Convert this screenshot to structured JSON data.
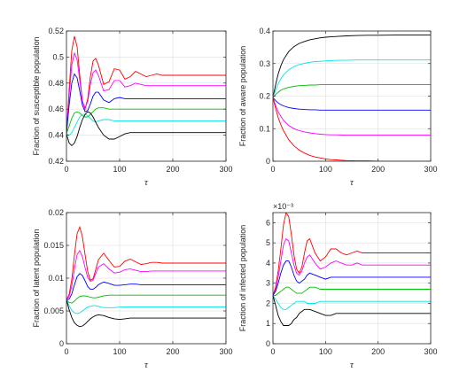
{
  "chart_data": [
    {
      "type": "line",
      "ylabel": "Fraction of susceptible population",
      "xlabel": "τ",
      "xlim": [
        0,
        300
      ],
      "ylim": [
        0.42,
        0.52
      ],
      "xticks": [
        "0",
        "100",
        "200",
        "300"
      ],
      "yticks": [
        "0.42",
        "0.44",
        "0.46",
        "0.48",
        "0.5",
        "0.52"
      ],
      "grid": true,
      "x": [
        0,
        5,
        10,
        15,
        20,
        25,
        30,
        35,
        40,
        45,
        50,
        55,
        60,
        70,
        80,
        90,
        100,
        110,
        120,
        130,
        140,
        150,
        160,
        170,
        180,
        190,
        200,
        220,
        240,
        260,
        280,
        300
      ],
      "series": [
        {
          "color": "#ff0000",
          "values": [
            0.441,
            0.475,
            0.505,
            0.516,
            0.508,
            0.486,
            0.466,
            0.46,
            0.468,
            0.485,
            0.497,
            0.499,
            0.494,
            0.479,
            0.481,
            0.491,
            0.49,
            0.483,
            0.485,
            0.489,
            0.487,
            0.485,
            0.486,
            0.487,
            0.486,
            0.486,
            0.486,
            0.486,
            0.486,
            0.486,
            0.486,
            0.486
          ]
        },
        {
          "color": "#ff00ff",
          "values": [
            0.441,
            0.47,
            0.494,
            0.503,
            0.498,
            0.482,
            0.466,
            0.461,
            0.466,
            0.479,
            0.488,
            0.49,
            0.486,
            0.474,
            0.475,
            0.482,
            0.482,
            0.477,
            0.478,
            0.48,
            0.479,
            0.478,
            0.478,
            0.478,
            0.478,
            0.478,
            0.478,
            0.478,
            0.478,
            0.478,
            0.478,
            0.478
          ]
        },
        {
          "color": "#0000ff",
          "values": [
            0.441,
            0.463,
            0.48,
            0.487,
            0.484,
            0.474,
            0.463,
            0.458,
            0.459,
            0.464,
            0.47,
            0.473,
            0.473,
            0.467,
            0.465,
            0.468,
            0.469,
            0.468,
            0.468,
            0.468,
            0.468,
            0.468,
            0.468,
            0.468,
            0.468,
            0.468,
            0.468,
            0.468,
            0.468,
            0.468,
            0.468,
            0.468
          ]
        },
        {
          "color": "#00c000",
          "values": [
            0.441,
            0.447,
            0.453,
            0.457,
            0.458,
            0.457,
            0.455,
            0.454,
            0.454,
            0.456,
            0.458,
            0.46,
            0.461,
            0.461,
            0.46,
            0.46,
            0.46,
            0.46,
            0.46,
            0.46,
            0.46,
            0.46,
            0.46,
            0.46,
            0.46,
            0.46,
            0.46,
            0.46,
            0.46,
            0.46,
            0.46,
            0.46
          ]
        },
        {
          "color": "#00e5e5",
          "values": [
            0.441,
            0.44,
            0.442,
            0.446,
            0.45,
            0.454,
            0.456,
            0.456,
            0.455,
            0.453,
            0.451,
            0.45,
            0.451,
            0.452,
            0.452,
            0.451,
            0.451,
            0.451,
            0.451,
            0.451,
            0.451,
            0.451,
            0.451,
            0.451,
            0.451,
            0.451,
            0.451,
            0.451,
            0.451,
            0.451,
            0.451,
            0.451
          ]
        },
        {
          "color": "#000000",
          "values": [
            0.441,
            0.434,
            0.432,
            0.434,
            0.439,
            0.446,
            0.452,
            0.456,
            0.458,
            0.457,
            0.454,
            0.45,
            0.446,
            0.44,
            0.437,
            0.437,
            0.439,
            0.441,
            0.442,
            0.442,
            0.442,
            0.442,
            0.442,
            0.442,
            0.442,
            0.442,
            0.442,
            0.442,
            0.442,
            0.442,
            0.442,
            0.442
          ]
        }
      ]
    },
    {
      "type": "line",
      "ylabel": "Fraction of aware population",
      "xlabel": "τ",
      "xlim": [
        0,
        300
      ],
      "ylim": [
        0,
        0.4
      ],
      "xticks": [
        "0",
        "100",
        "200",
        "300"
      ],
      "yticks": [
        "0",
        "0.1",
        "0.2",
        "0.3",
        "0.4"
      ],
      "grid": true,
      "x": [
        0,
        5,
        10,
        15,
        20,
        30,
        40,
        50,
        60,
        70,
        80,
        90,
        100,
        110,
        120,
        140,
        160,
        180,
        200,
        250,
        300
      ],
      "series": [
        {
          "color": "#000000",
          "values": [
            0.195,
            0.235,
            0.268,
            0.293,
            0.312,
            0.337,
            0.352,
            0.362,
            0.368,
            0.373,
            0.376,
            0.379,
            0.381,
            0.382,
            0.383,
            0.385,
            0.386,
            0.387,
            0.387,
            0.388,
            0.388
          ]
        },
        {
          "color": "#00e5e5",
          "values": [
            0.195,
            0.219,
            0.238,
            0.253,
            0.265,
            0.281,
            0.291,
            0.297,
            0.301,
            0.304,
            0.306,
            0.307,
            0.308,
            0.309,
            0.31,
            0.31,
            0.311,
            0.311,
            0.311,
            0.311,
            0.311
          ]
        },
        {
          "color": "#00c000",
          "values": [
            0.195,
            0.205,
            0.212,
            0.218,
            0.222,
            0.227,
            0.23,
            0.232,
            0.233,
            0.234,
            0.234,
            0.235,
            0.235,
            0.235,
            0.235,
            0.235,
            0.235,
            0.235,
            0.235,
            0.235,
            0.235
          ]
        },
        {
          "color": "#0000ff",
          "values": [
            0.195,
            0.186,
            0.179,
            0.174,
            0.17,
            0.165,
            0.162,
            0.16,
            0.159,
            0.158,
            0.158,
            0.157,
            0.157,
            0.157,
            0.157,
            0.157,
            0.157,
            0.157,
            0.157,
            0.157,
            0.157
          ]
        },
        {
          "color": "#ff00ff",
          "values": [
            0.195,
            0.171,
            0.152,
            0.138,
            0.126,
            0.11,
            0.1,
            0.094,
            0.09,
            0.087,
            0.085,
            0.083,
            0.082,
            0.081,
            0.081,
            0.08,
            0.08,
            0.08,
            0.08,
            0.08,
            0.08
          ]
        },
        {
          "color": "#ff0000",
          "values": [
            0.195,
            0.162,
            0.134,
            0.112,
            0.094,
            0.066,
            0.047,
            0.034,
            0.025,
            0.018,
            0.013,
            0.01,
            0.007,
            0.005,
            0.004,
            0.002,
            0.001,
            0.001,
            0.0,
            0.0,
            0.0
          ]
        }
      ]
    },
    {
      "type": "line",
      "ylabel": "Fraction of latent population",
      "xlabel": "τ",
      "xlim": [
        0,
        300
      ],
      "ylim": [
        0,
        0.02
      ],
      "xticks": [
        "0",
        "100",
        "200",
        "300"
      ],
      "yticks": [
        "0",
        "0.005",
        "0.01",
        "0.015",
        "0.02"
      ],
      "grid": true,
      "x": [
        0,
        5,
        10,
        15,
        20,
        25,
        30,
        35,
        40,
        45,
        50,
        55,
        60,
        70,
        80,
        90,
        100,
        110,
        120,
        130,
        140,
        150,
        160,
        170,
        180,
        190,
        200,
        220,
        240,
        260,
        280,
        300
      ],
      "series": [
        {
          "color": "#ff0000",
          "values": [
            0.0067,
            0.0075,
            0.0098,
            0.0135,
            0.0168,
            0.0178,
            0.0163,
            0.0136,
            0.011,
            0.0097,
            0.0099,
            0.0113,
            0.0128,
            0.0138,
            0.0127,
            0.0117,
            0.0118,
            0.0126,
            0.0129,
            0.0125,
            0.0121,
            0.0122,
            0.0124,
            0.0124,
            0.0123,
            0.0123,
            0.0123,
            0.0123,
            0.0123,
            0.0123,
            0.0123,
            0.0123
          ]
        },
        {
          "color": "#ff00ff",
          "values": [
            0.0067,
            0.0072,
            0.0088,
            0.0114,
            0.0136,
            0.0142,
            0.0133,
            0.0116,
            0.0101,
            0.0095,
            0.0097,
            0.0107,
            0.0117,
            0.0122,
            0.0114,
            0.0108,
            0.0109,
            0.0113,
            0.0114,
            0.0112,
            0.011,
            0.011,
            0.0111,
            0.0111,
            0.0111,
            0.0111,
            0.0111,
            0.0111,
            0.0111,
            0.0111,
            0.0111,
            0.0111
          ]
        },
        {
          "color": "#0000ff",
          "values": [
            0.0067,
            0.0068,
            0.0076,
            0.009,
            0.0102,
            0.0107,
            0.0104,
            0.0096,
            0.0087,
            0.0083,
            0.0083,
            0.0086,
            0.009,
            0.0094,
            0.0092,
            0.0089,
            0.0089,
            0.009,
            0.0091,
            0.0091,
            0.009,
            0.009,
            0.009,
            0.009,
            0.009,
            0.009,
            0.009,
            0.009,
            0.009,
            0.009,
            0.009,
            0.009
          ]
        },
        {
          "color": "#00c000",
          "values": [
            0.0067,
            0.0063,
            0.0062,
            0.0065,
            0.0069,
            0.0072,
            0.0073,
            0.0073,
            0.0072,
            0.0071,
            0.007,
            0.007,
            0.0071,
            0.0073,
            0.0074,
            0.0074,
            0.0074,
            0.0074,
            0.0074,
            0.0074,
            0.0074,
            0.0074,
            0.0074,
            0.0074,
            0.0074,
            0.0074,
            0.0074,
            0.0074,
            0.0074,
            0.0074,
            0.0074,
            0.0074
          ]
        },
        {
          "color": "#00e5e5",
          "values": [
            0.0067,
            0.0058,
            0.0051,
            0.0047,
            0.0046,
            0.0047,
            0.005,
            0.0053,
            0.0056,
            0.0057,
            0.0058,
            0.0058,
            0.0057,
            0.0055,
            0.0055,
            0.0055,
            0.0056,
            0.0056,
            0.0056,
            0.0056,
            0.0056,
            0.0056,
            0.0056,
            0.0056,
            0.0056,
            0.0056,
            0.0056,
            0.0056,
            0.0056,
            0.0056,
            0.0056,
            0.0056
          ]
        },
        {
          "color": "#000000",
          "values": [
            0.0067,
            0.0052,
            0.004,
            0.0032,
            0.0028,
            0.0026,
            0.0027,
            0.003,
            0.0034,
            0.0038,
            0.0041,
            0.0043,
            0.0044,
            0.0043,
            0.004,
            0.0038,
            0.0037,
            0.0038,
            0.0039,
            0.0039,
            0.0039,
            0.0039,
            0.0039,
            0.0039,
            0.0039,
            0.0039,
            0.0039,
            0.0039,
            0.0039,
            0.0039,
            0.0039,
            0.0039
          ]
        }
      ]
    },
    {
      "type": "line",
      "ylabel": "Fraction of infected population",
      "xlabel": "τ",
      "ymultiplier": "×10⁻³",
      "xlim": [
        0,
        300
      ],
      "ylim": [
        0,
        0.0065
      ],
      "xticks": [
        "0",
        "100",
        "200",
        "300"
      ],
      "yticks": [
        "0",
        "1",
        "2",
        "3",
        "4",
        "5",
        "6"
      ],
      "grid": true,
      "x": [
        0,
        5,
        10,
        15,
        20,
        25,
        30,
        35,
        40,
        45,
        50,
        55,
        60,
        65,
        70,
        80,
        90,
        100,
        110,
        120,
        130,
        140,
        150,
        160,
        170,
        180,
        190,
        200,
        220,
        240,
        260,
        280,
        300
      ],
      "series": [
        {
          "color": "#ff0000",
          "values": [
            0.0024,
            0.0028,
            0.0036,
            0.0047,
            0.0059,
            0.0065,
            0.0063,
            0.0054,
            0.0044,
            0.0037,
            0.0035,
            0.0038,
            0.0045,
            0.0051,
            0.0052,
            0.0045,
            0.0041,
            0.0043,
            0.0047,
            0.0047,
            0.0045,
            0.0044,
            0.0045,
            0.0046,
            0.0045,
            0.0045,
            0.0045,
            0.0045,
            0.0045,
            0.0045,
            0.0045,
            0.0045,
            0.0045
          ]
        },
        {
          "color": "#ff00ff",
          "values": [
            0.0024,
            0.0027,
            0.0033,
            0.0041,
            0.0049,
            0.0052,
            0.0051,
            0.0045,
            0.0039,
            0.0035,
            0.0034,
            0.0036,
            0.004,
            0.0043,
            0.0044,
            0.004,
            0.0037,
            0.0038,
            0.004,
            0.0041,
            0.004,
            0.0039,
            0.0039,
            0.004,
            0.0039,
            0.0039,
            0.0039,
            0.0039,
            0.0039,
            0.0039,
            0.0039,
            0.0039,
            0.0039
          ]
        },
        {
          "color": "#0000ff",
          "values": [
            0.0024,
            0.0026,
            0.003,
            0.0035,
            0.0039,
            0.0041,
            0.0041,
            0.0038,
            0.0034,
            0.0031,
            0.003,
            0.0031,
            0.0032,
            0.0034,
            0.0035,
            0.0034,
            0.0033,
            0.0032,
            0.0033,
            0.0033,
            0.0033,
            0.0033,
            0.0033,
            0.0033,
            0.0033,
            0.0033,
            0.0033,
            0.0033,
            0.0033,
            0.0033,
            0.0033,
            0.0033,
            0.0033
          ]
        },
        {
          "color": "#00c000",
          "values": [
            0.0024,
            0.0024,
            0.0025,
            0.0026,
            0.0027,
            0.0028,
            0.0028,
            0.0027,
            0.0026,
            0.0025,
            0.0025,
            0.0025,
            0.0026,
            0.0027,
            0.0028,
            0.0028,
            0.0027,
            0.0027,
            0.0027,
            0.0027,
            0.0027,
            0.0027,
            0.0027,
            0.0027,
            0.0027,
            0.0027,
            0.0027,
            0.0027,
            0.0027,
            0.0027,
            0.0027,
            0.0027,
            0.0027
          ]
        },
        {
          "color": "#00e5e5",
          "values": [
            0.0024,
            0.0022,
            0.002,
            0.0018,
            0.0017,
            0.0017,
            0.0018,
            0.0019,
            0.002,
            0.0021,
            0.0021,
            0.0021,
            0.0021,
            0.002,
            0.002,
            0.002,
            0.0021,
            0.0021,
            0.0021,
            0.0021,
            0.0021,
            0.0021,
            0.0021,
            0.0021,
            0.0021,
            0.0021,
            0.0021,
            0.0021,
            0.0021,
            0.0021,
            0.0021,
            0.0021,
            0.0021
          ]
        },
        {
          "color": "#000000",
          "values": [
            0.0024,
            0.0019,
            0.0014,
            0.0011,
            0.0009,
            0.0009,
            0.0009,
            0.001,
            0.0012,
            0.0013,
            0.0015,
            0.0016,
            0.0017,
            0.0017,
            0.0017,
            0.0016,
            0.0015,
            0.0014,
            0.0014,
            0.0015,
            0.0015,
            0.0015,
            0.0015,
            0.0015,
            0.0015,
            0.0015,
            0.0015,
            0.0015,
            0.0015,
            0.0015,
            0.0015,
            0.0015,
            0.0015
          ]
        }
      ]
    }
  ]
}
